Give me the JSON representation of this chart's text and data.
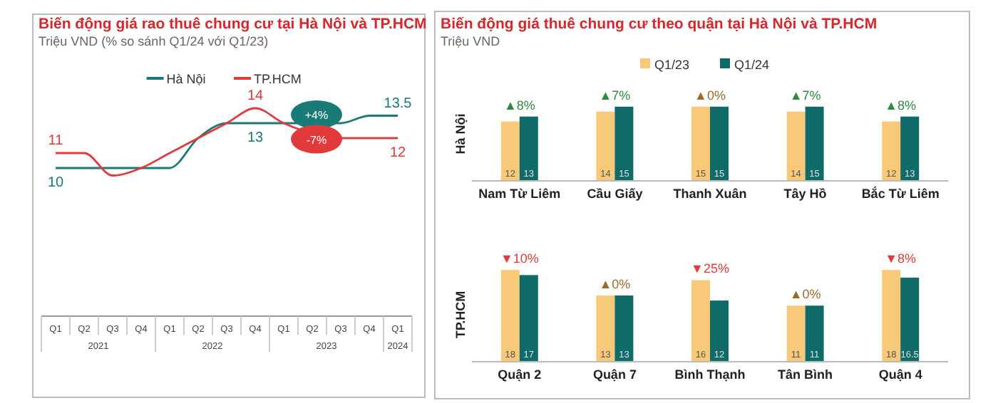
{
  "chart_data": [
    {
      "type": "line",
      "title": "Biến động giá rao thuê chung cư tại Hà Nội và TP.HCM",
      "subtitle": "Triệu VND (% so sánh Q1/24 với Q1/23)",
      "categories": [
        "Q1",
        "Q2",
        "Q3",
        "Q4",
        "Q1",
        "Q2",
        "Q3",
        "Q4",
        "Q1",
        "Q2",
        "Q3",
        "Q4",
        "Q1"
      ],
      "tick_labels": "x",
      "legend": "top",
      "marker": "none",
      "line_style": "solid",
      "series": [
        {
          "name": "Hà Nội",
          "color": "#1a7a78",
          "values": [
            10,
            10,
            10,
            10,
            10,
            12,
            13,
            13,
            13,
            null,
            13,
            13.5,
            13.5
          ],
          "value_labels": [
            "10",
            null,
            null,
            null,
            null,
            null,
            null,
            "13",
            null,
            null,
            null,
            null,
            "13.5"
          ]
        },
        {
          "name": "TP.HCM",
          "color": "#e03a3a",
          "values": [
            11,
            11,
            9.5,
            10,
            11,
            12,
            13,
            14,
            13,
            null,
            12,
            12,
            12
          ],
          "value_labels": [
            "11",
            null,
            null,
            null,
            null,
            null,
            null,
            "14",
            null,
            null,
            null,
            null,
            "12"
          ]
        }
      ],
      "annotations": [
        "+4%",
        "-7%",
        "2021",
        "2022",
        "2023",
        "2024"
      ]
    },
    {
      "type": "bar",
      "title": "Biến động giá thuê chung cư theo quận tại Hà Nội và TP.HCM",
      "subtitle": "Triệu VND",
      "ylabel": "Hà Nội",
      "categories": [
        "Nam Từ Liêm",
        "Cầu Giấy",
        "Thanh Xuân",
        "Tây Hồ",
        "Bắc Từ Liêm"
      ],
      "tick_labels": "x",
      "legend": "top",
      "data_labels": true,
      "series": [
        {
          "name": "Q1/23",
          "color": "#f7c978",
          "values": [
            12,
            14,
            15,
            14,
            12
          ]
        },
        {
          "name": "Q1/24",
          "color": "#0e6b68",
          "values": [
            13,
            15,
            15,
            15,
            13
          ]
        }
      ],
      "annotations": [
        {
          "text": "▲8%",
          "x": "Nam Từ Liêm",
          "y": 13
        },
        {
          "text": "▲7%",
          "x": "Cầu Giấy",
          "y": 15
        },
        {
          "text": "▲0%",
          "x": "Thanh Xuân",
          "y": 15
        },
        {
          "text": "▲7%",
          "x": "Tây Hồ",
          "y": 15
        },
        {
          "text": "▲8%",
          "x": "Bắc Từ Liêm",
          "y": 13
        }
      ]
    },
    {
      "type": "bar",
      "ylabel": "TP.HCM",
      "categories": [
        "Quận 2",
        "Quận 7",
        "Bình Thạnh",
        "Tân Bình",
        "Quận 4"
      ],
      "tick_labels": "x",
      "data_labels": true,
      "series": [
        {
          "color": "#f7c978",
          "values": [
            18,
            13,
            16,
            11,
            18
          ]
        },
        {
          "color": "#0e6b68",
          "values": [
            17,
            13,
            12,
            11,
            16.5
          ]
        }
      ],
      "annotations": [
        {
          "text": "▼10%",
          "x": "Quận 2",
          "y": 18
        },
        {
          "text": "▲0%",
          "x": "Quận 7",
          "y": 13
        },
        {
          "text": "▼25%",
          "x": "Bình Thạnh",
          "y": 16
        },
        {
          "text": "▲0%",
          "x": "Tân Bình",
          "y": 11
        },
        {
          "text": "▼8%",
          "x": "Quận 4",
          "y": 18
        }
      ]
    }
  ]
}
